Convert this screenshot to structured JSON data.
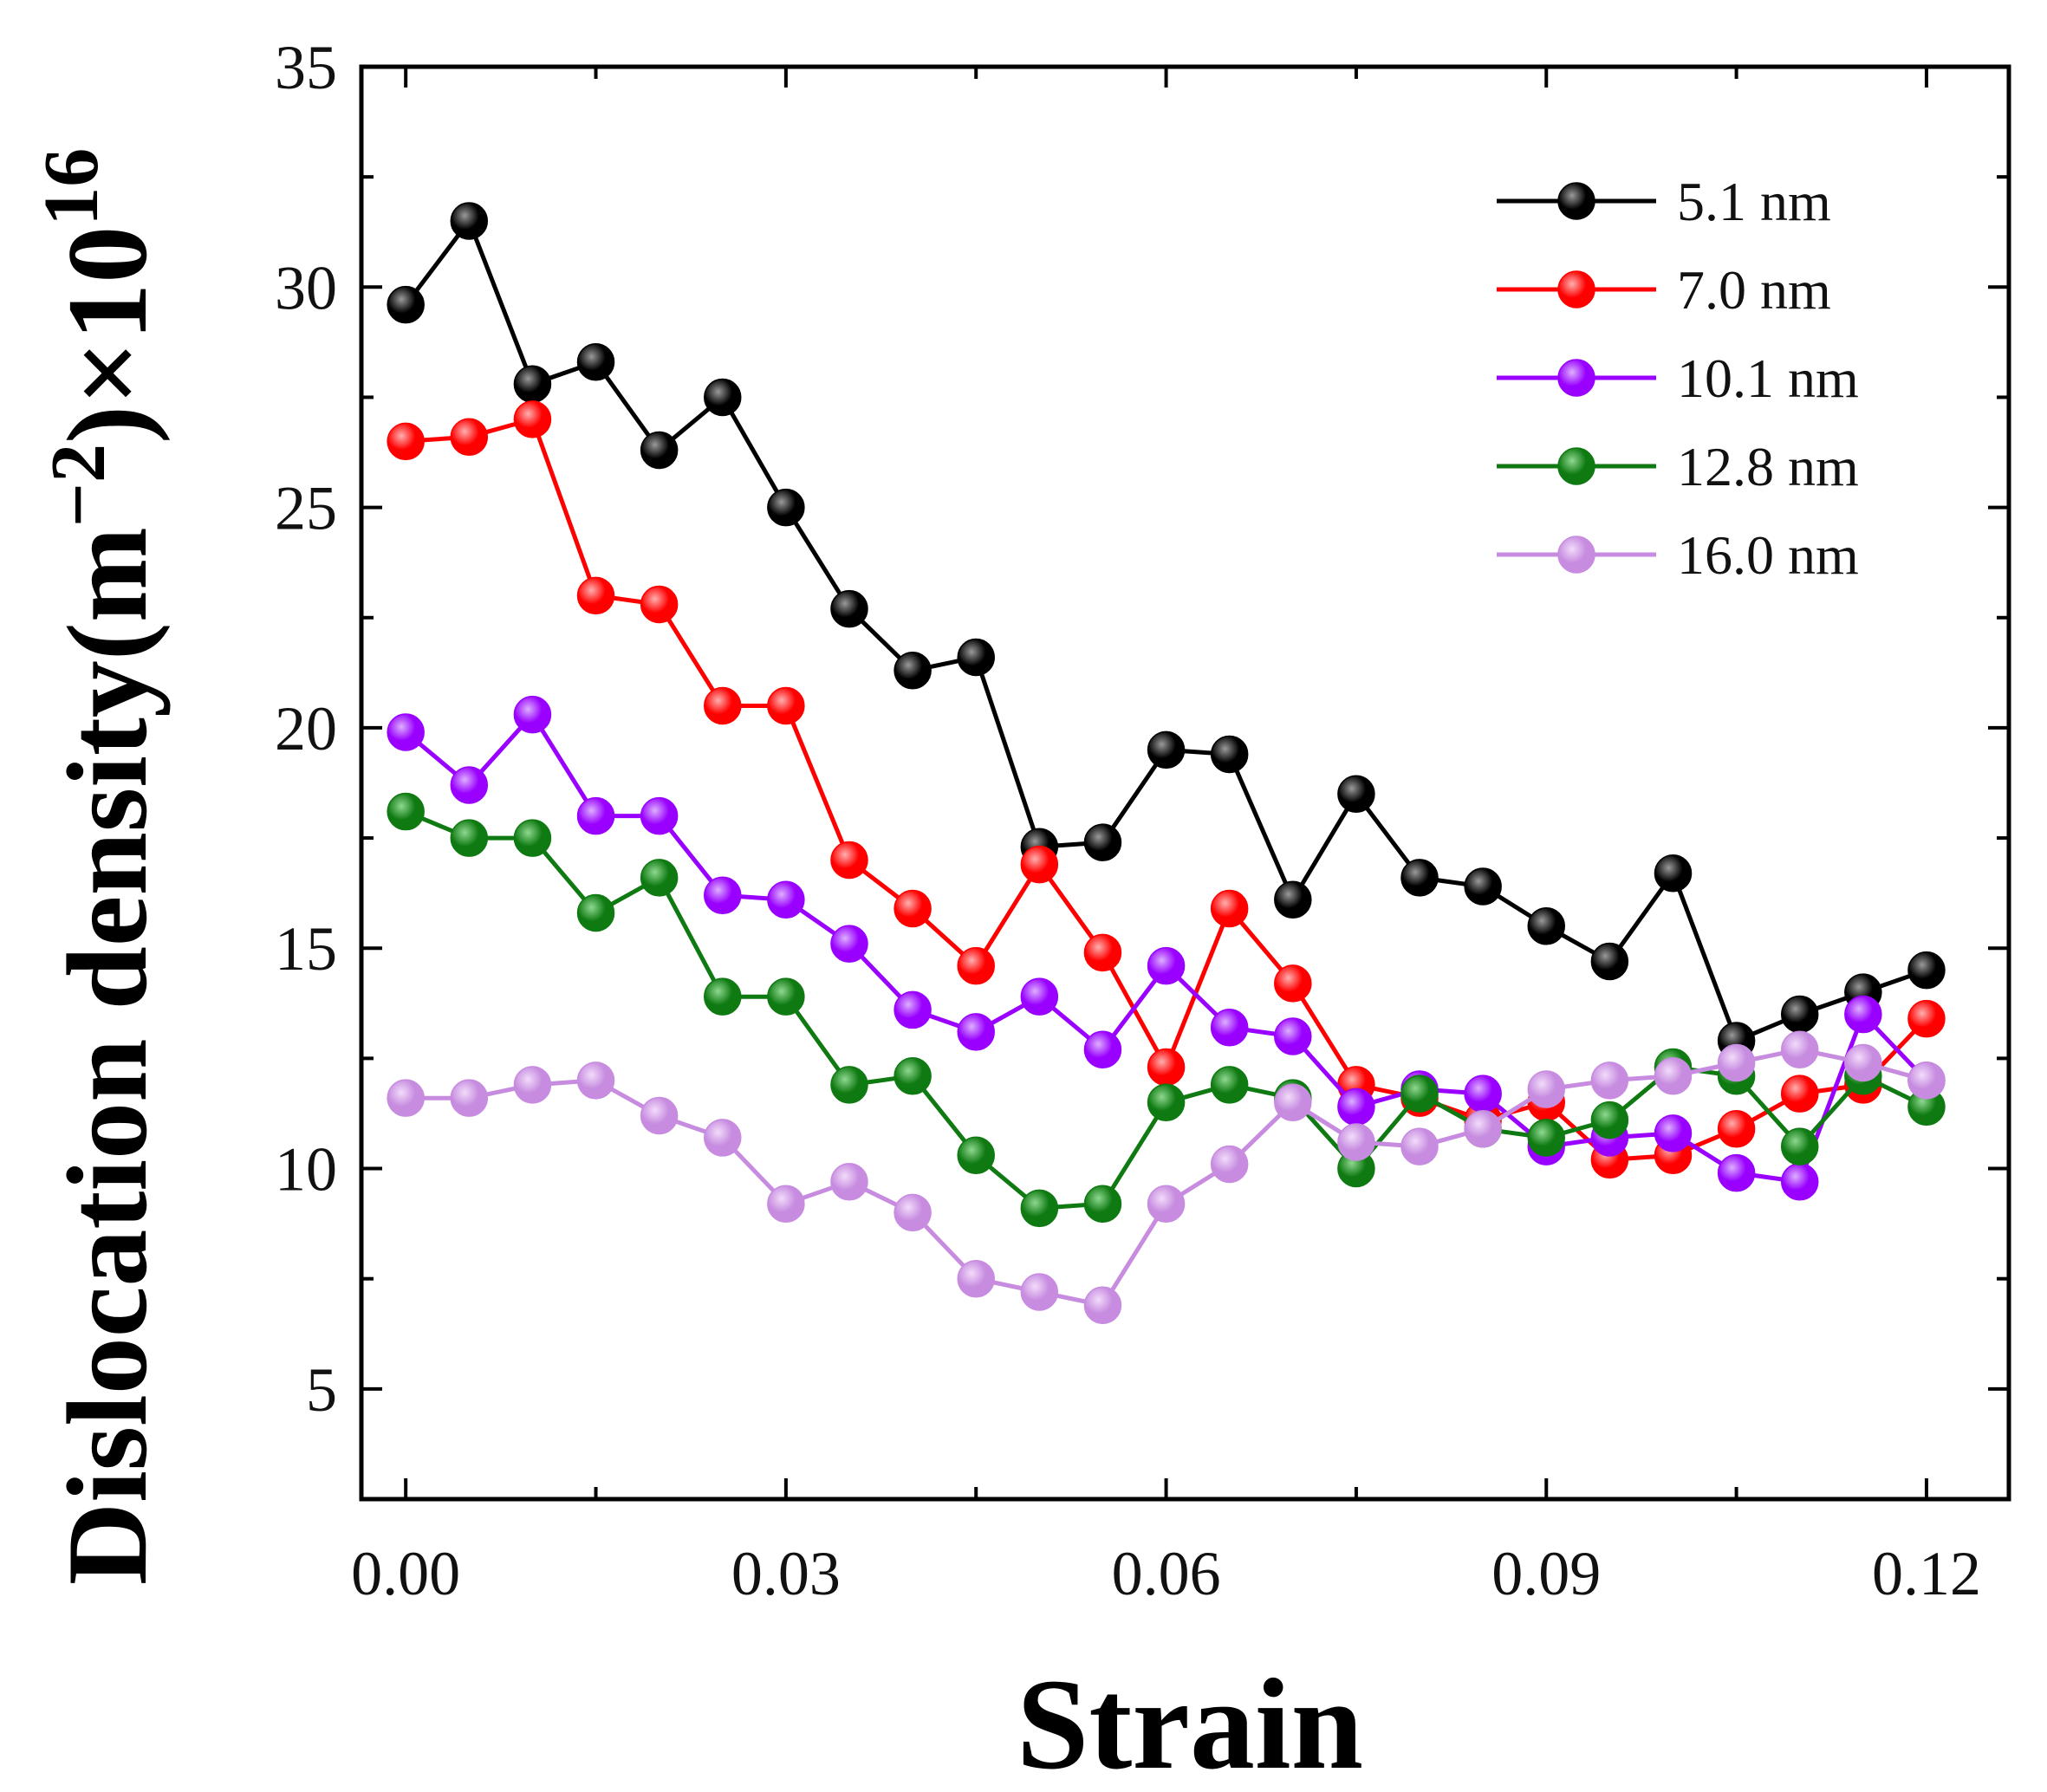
{
  "chart_data": {
    "type": "line",
    "title": "",
    "xlabel": "Strain",
    "ylabel": "Dislocation density(m",
    "ylabel_sup1": "−2",
    "ylabel_mid": ")×10",
    "ylabel_sup2": "16",
    "xlim": [
      -0.0035,
      0.1265
    ],
    "ylim": [
      2.5,
      35
    ],
    "x_ticks": [
      0.0,
      0.03,
      0.06,
      0.09,
      0.12
    ],
    "x_tick_labels": [
      "0.00",
      "0.03",
      "0.06",
      "0.09",
      "0.12"
    ],
    "y_ticks": [
      5,
      10,
      15,
      20,
      25,
      30,
      35
    ],
    "y_tick_labels": [
      "5",
      "10",
      "15",
      "20",
      "25",
      "30",
      "35"
    ],
    "legend_position": "top-right",
    "series": [
      {
        "name": "5.1 nm",
        "color": "#000000",
        "highlight": "#9a9a9a",
        "x": [
          0,
          0.005,
          0.01,
          0.015,
          0.02,
          0.025,
          0.03,
          0.035,
          0.04,
          0.045,
          0.05,
          0.055,
          0.06,
          0.065,
          0.07,
          0.075,
          0.08,
          0.085,
          0.09,
          0.095,
          0.1,
          0.105,
          0.11,
          0.115,
          0.12
        ],
        "values": [
          29.6,
          31.5,
          27.8,
          28.3,
          26.3,
          27.5,
          25.0,
          22.7,
          21.3,
          21.6,
          17.3,
          17.4,
          19.5,
          19.4,
          16.1,
          18.5,
          16.6,
          16.4,
          15.5,
          14.7,
          16.7,
          12.9,
          13.5,
          14.0,
          14.5
        ]
      },
      {
        "name": "7.0 nm",
        "color": "#ff0000",
        "highlight": "#ffb0b0",
        "x": [
          0,
          0.005,
          0.01,
          0.015,
          0.02,
          0.025,
          0.03,
          0.035,
          0.04,
          0.045,
          0.05,
          0.055,
          0.06,
          0.065,
          0.07,
          0.075,
          0.08,
          0.085,
          0.09,
          0.095,
          0.1,
          0.105,
          0.11,
          0.115,
          0.12
        ],
        "values": [
          26.5,
          26.6,
          27.0,
          23.0,
          22.8,
          20.5,
          20.5,
          17.0,
          15.9,
          14.6,
          16.9,
          14.9,
          12.3,
          15.9,
          14.2,
          11.9,
          11.6,
          11.1,
          11.5,
          10.2,
          10.3,
          10.9,
          11.7,
          11.9,
          13.4
        ]
      },
      {
        "name": "10.1 nm",
        "color": "#9900ff",
        "highlight": "#ddb0ff",
        "x": [
          0,
          0.005,
          0.01,
          0.015,
          0.02,
          0.025,
          0.03,
          0.035,
          0.04,
          0.045,
          0.05,
          0.055,
          0.06,
          0.065,
          0.07,
          0.075,
          0.08,
          0.085,
          0.09,
          0.095,
          0.1,
          0.105,
          0.11,
          0.115,
          0.12
        ],
        "values": [
          19.9,
          18.7,
          20.3,
          18.0,
          18.0,
          16.2,
          16.1,
          15.1,
          13.6,
          13.1,
          13.9,
          12.7,
          14.6,
          13.2,
          13.0,
          11.4,
          11.8,
          11.7,
          10.5,
          10.7,
          10.8,
          9.9,
          9.7,
          13.5,
          12.0
        ]
      },
      {
        "name": "12.8 nm",
        "color": "#0f7a12",
        "highlight": "#8fd890",
        "x": [
          0,
          0.005,
          0.01,
          0.015,
          0.02,
          0.025,
          0.03,
          0.035,
          0.04,
          0.045,
          0.05,
          0.055,
          0.06,
          0.065,
          0.07,
          0.075,
          0.08,
          0.085,
          0.09,
          0.095,
          0.1,
          0.105,
          0.11,
          0.115,
          0.12
        ],
        "values": [
          18.1,
          17.5,
          17.5,
          15.8,
          16.6,
          13.9,
          13.9,
          11.9,
          12.1,
          10.3,
          9.1,
          9.2,
          11.5,
          11.9,
          11.6,
          10.0,
          11.7,
          10.9,
          10.7,
          11.1,
          12.3,
          12.1,
          10.5,
          12.1,
          11.4
        ]
      },
      {
        "name": "16.0 nm",
        "color": "#c78ce0",
        "highlight": "#f2dcfa",
        "x": [
          0,
          0.005,
          0.01,
          0.015,
          0.02,
          0.025,
          0.03,
          0.035,
          0.04,
          0.045,
          0.05,
          0.055,
          0.06,
          0.065,
          0.07,
          0.075,
          0.08,
          0.085,
          0.09,
          0.095,
          0.1,
          0.105,
          0.11,
          0.115,
          0.12
        ],
        "values": [
          11.6,
          11.6,
          11.9,
          12.0,
          11.2,
          10.7,
          9.2,
          9.7,
          9.0,
          7.5,
          7.2,
          6.9,
          9.2,
          10.1,
          11.5,
          10.6,
          10.5,
          10.9,
          11.8,
          12.0,
          12.1,
          12.4,
          12.7,
          12.4,
          12.0
        ]
      }
    ]
  }
}
